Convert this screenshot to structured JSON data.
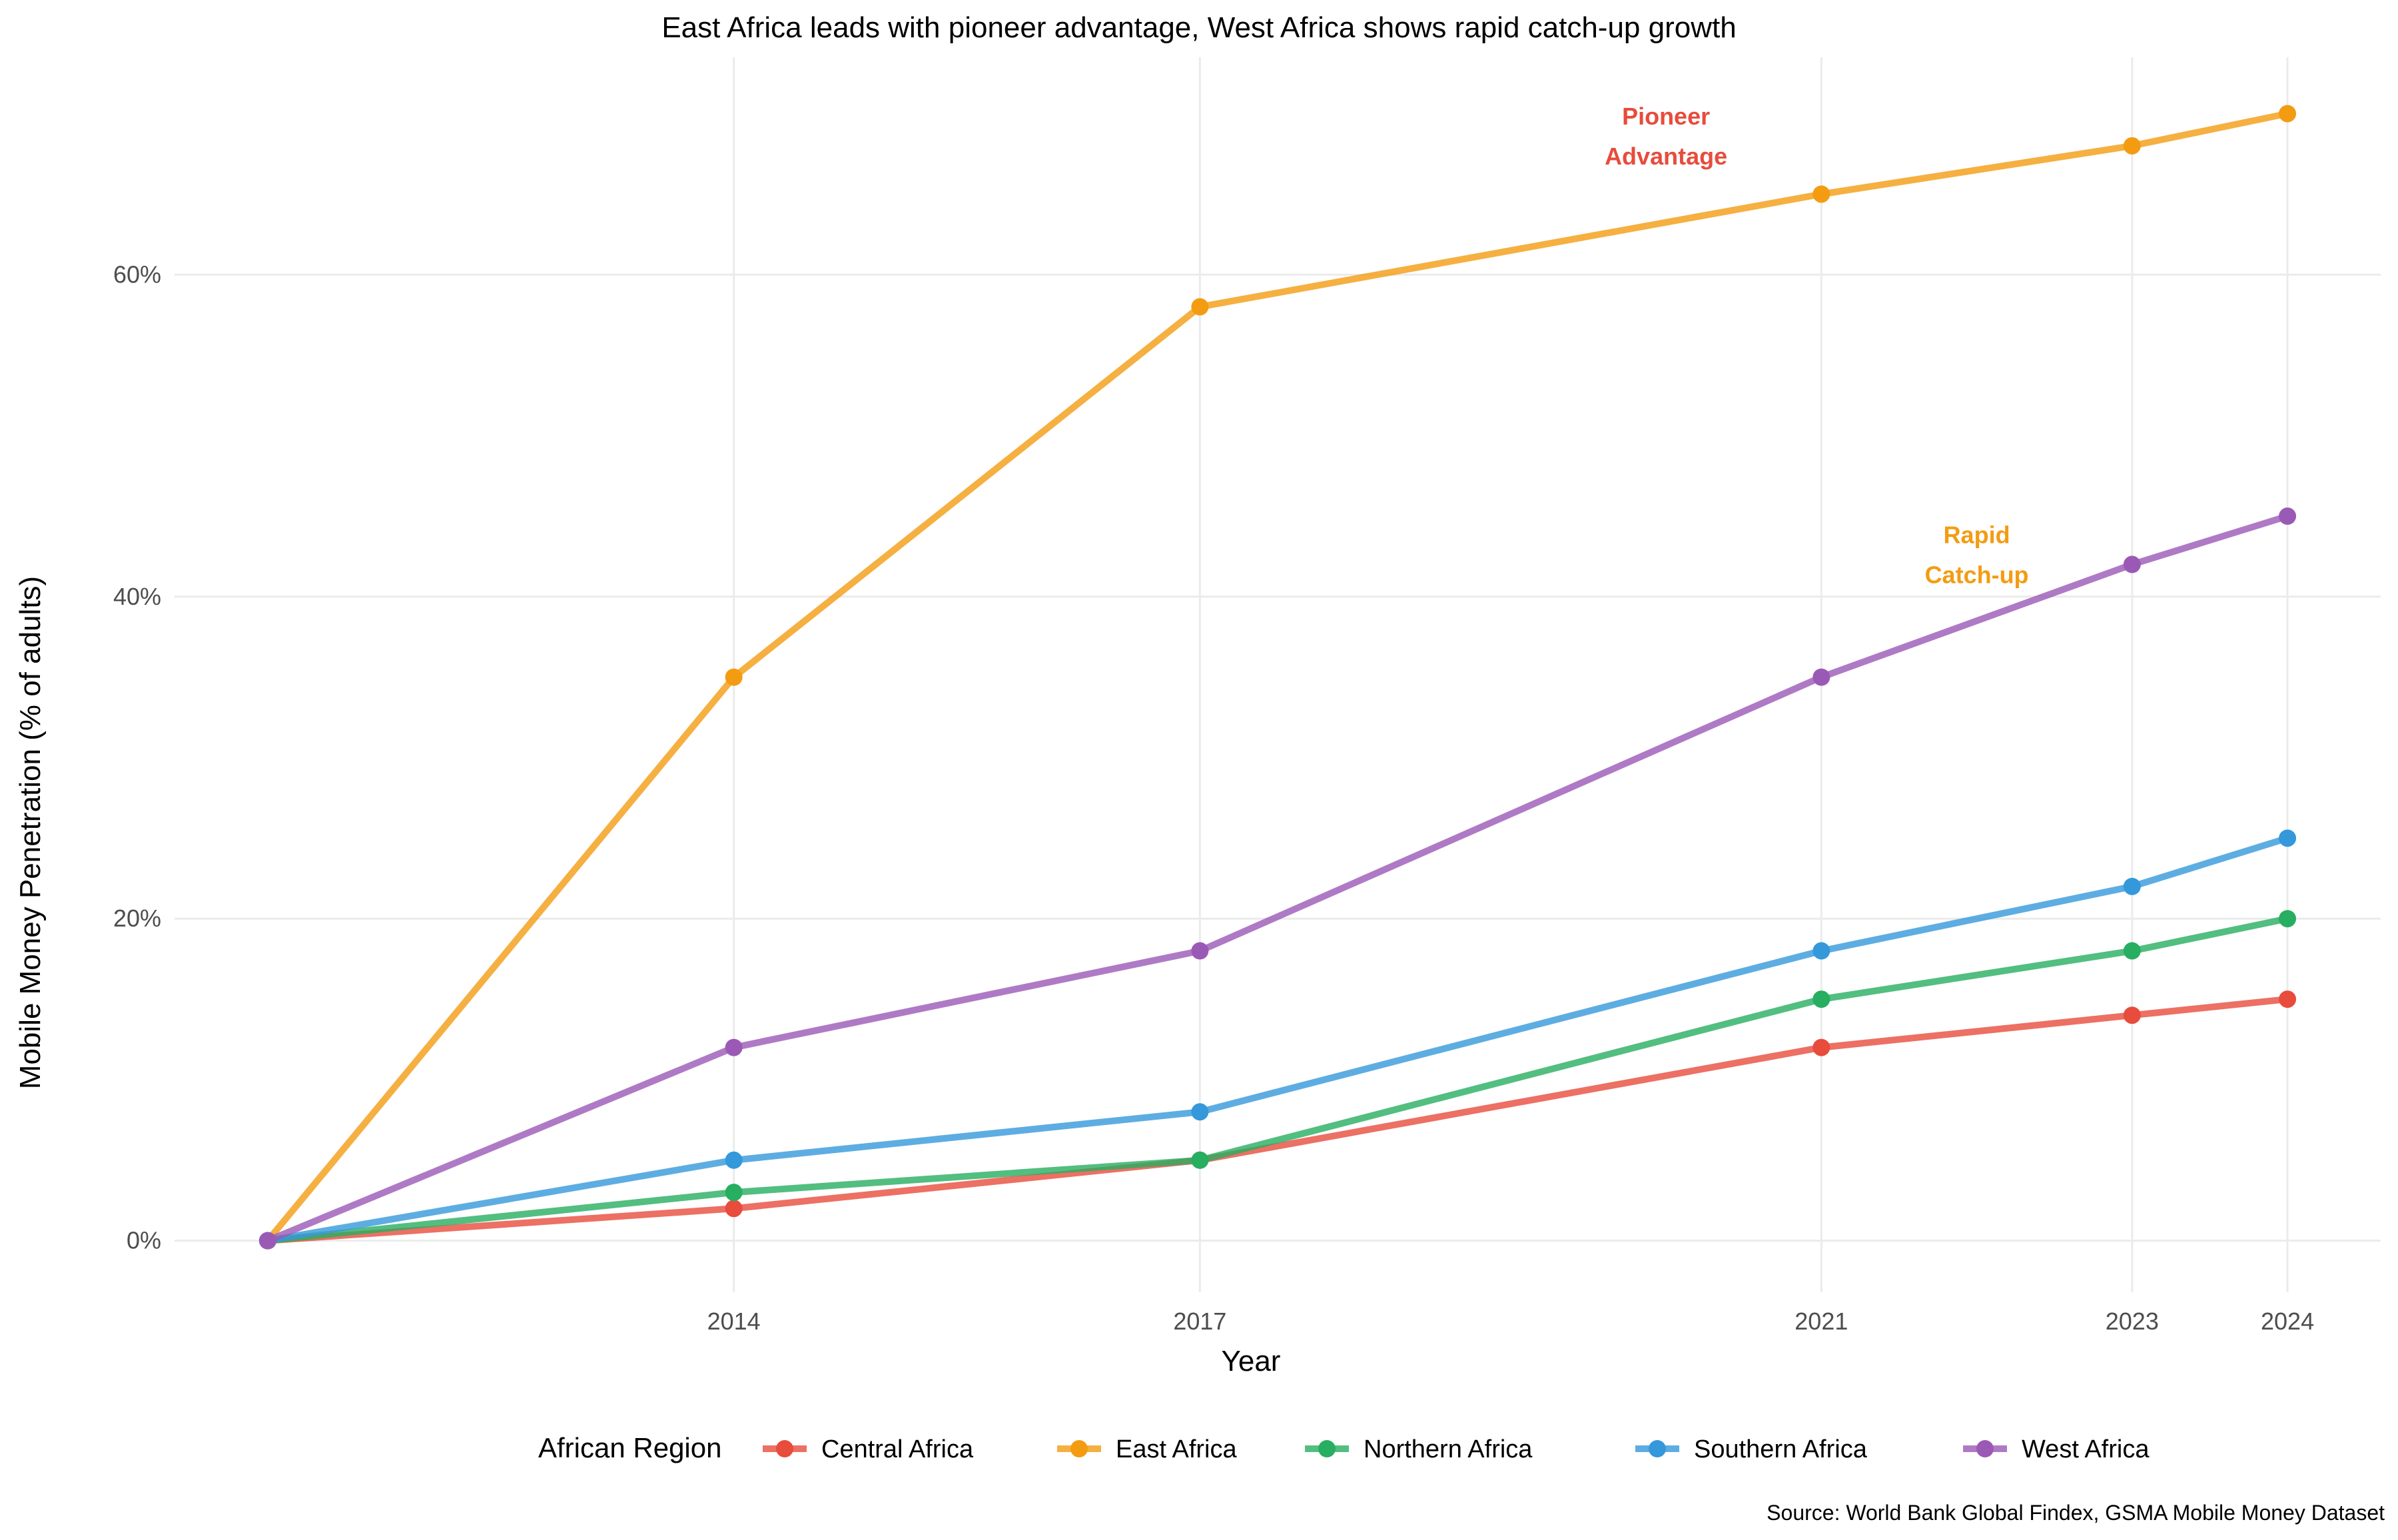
{
  "chart_data": {
    "type": "line",
    "title": "East Africa leads with pioneer advantage, West Africa shows rapid catch-up growth",
    "xlabel": "Year",
    "ylabel": "Mobile Money Penetration (% of adults)",
    "x": [
      2011,
      2014,
      2017,
      2021,
      2023,
      2024
    ],
    "x_tick_labels": [
      "2014",
      "2017",
      "2021",
      "2023",
      "2024"
    ],
    "x_ticks": [
      2014,
      2017,
      2021,
      2023,
      2024
    ],
    "xlim": [
      2010.4,
      2024.6
    ],
    "ylim": [
      -3.2,
      73.5
    ],
    "y_ticks": [
      0,
      20,
      40,
      60
    ],
    "y_tick_labels": [
      "0%",
      "20%",
      "40%",
      "60%"
    ],
    "grid": true,
    "legend": {
      "title": "African Region",
      "position": "bottom"
    },
    "series": [
      {
        "name": "Central Africa",
        "color": "#E74C3C",
        "values": [
          0,
          2,
          5,
          12,
          14,
          15
        ]
      },
      {
        "name": "East Africa",
        "color": "#F39C12",
        "values": [
          0,
          35,
          58,
          65,
          68,
          70
        ]
      },
      {
        "name": "Northern Africa",
        "color": "#27AE60",
        "values": [
          0,
          3,
          5,
          15,
          18,
          20
        ]
      },
      {
        "name": "Southern Africa",
        "color": "#3498DB",
        "values": [
          0,
          5,
          8,
          18,
          22,
          25
        ]
      },
      {
        "name": "West Africa",
        "color": "#9B59B6",
        "values": [
          0,
          12,
          18,
          35,
          42,
          45
        ]
      }
    ],
    "annotations": [
      {
        "lines": [
          "Pioneer",
          "Advantage"
        ],
        "x": 2020,
        "y": 68,
        "color": "#E74C3C"
      },
      {
        "lines": [
          "Rapid",
          "Catch-up"
        ],
        "x": 2022,
        "y": 42,
        "color": "#F39C12"
      }
    ],
    "caption": "Source: World Bank Global Findex, GSMA Mobile Money Dataset"
  }
}
